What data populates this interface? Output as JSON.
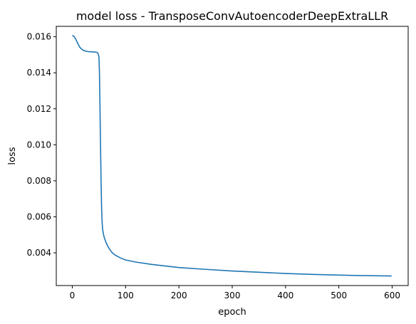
{
  "chart_data": {
    "type": "line",
    "title": "model loss - TransposeConvAutoencoderDeepExtraLLR",
    "xlabel": "epoch",
    "ylabel": "loss",
    "xlim": [
      -30,
      630
    ],
    "ylim": [
      0.00218,
      0.01658
    ],
    "x_ticks": [
      0,
      100,
      200,
      300,
      400,
      500,
      600
    ],
    "x_tick_labels": [
      "0",
      "100",
      "200",
      "300",
      "400",
      "500",
      "600"
    ],
    "y_ticks": [
      0.004,
      0.006,
      0.008,
      0.01,
      0.012,
      0.014,
      0.016
    ],
    "y_tick_labels": [
      "0.004",
      "0.006",
      "0.008",
      "0.010",
      "0.012",
      "0.014",
      "0.016"
    ],
    "grid": false,
    "legend": "none",
    "series": [
      {
        "color": "#1f77b4",
        "x": [
          0,
          3,
          6,
          10,
          14,
          18,
          22,
          26,
          30,
          35,
          40,
          45,
          48,
          50,
          51,
          52,
          53,
          54,
          55,
          56,
          57,
          58,
          60,
          63,
          66,
          70,
          75,
          80,
          90,
          100,
          120,
          150,
          200,
          250,
          300,
          350,
          400,
          450,
          500,
          550,
          599
        ],
        "y": [
          0.01608,
          0.01603,
          0.0159,
          0.01565,
          0.01542,
          0.0153,
          0.01523,
          0.0152,
          0.01518,
          0.01517,
          0.01516,
          0.01515,
          0.0151,
          0.0149,
          0.014,
          0.012,
          0.01,
          0.008,
          0.0065,
          0.0057,
          0.0053,
          0.0051,
          0.00485,
          0.0046,
          0.0044,
          0.0042,
          0.004,
          0.00388,
          0.00372,
          0.0036,
          0.00348,
          0.00335,
          0.00318,
          0.00308,
          0.00299,
          0.00292,
          0.00285,
          0.0028,
          0.00276,
          0.00273,
          0.00271
        ]
      }
    ]
  }
}
